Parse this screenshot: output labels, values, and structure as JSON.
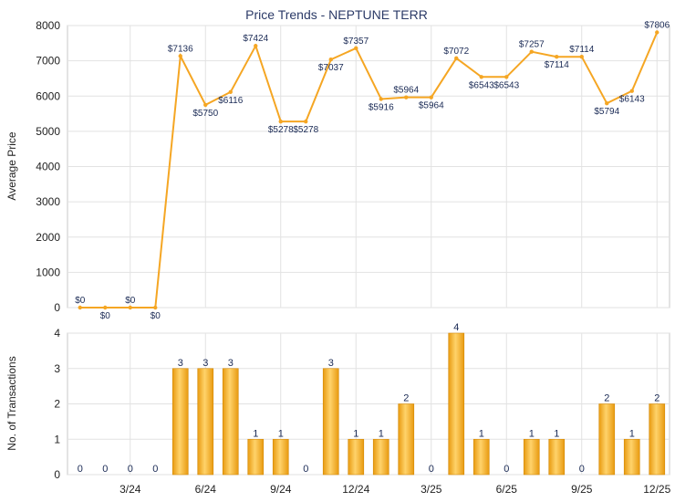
{
  "chart_data": [
    {
      "type": "line",
      "title": "Price Trends - NEPTUNE TERR",
      "ylabel": "Average Price",
      "xlabel": "",
      "ylim": [
        0,
        8000
      ],
      "yticks": [
        "0",
        "1000",
        "2000",
        "3000",
        "4000",
        "5000",
        "6000",
        "7000",
        "8000"
      ],
      "grid": true,
      "color": "#f5a623",
      "series": [
        {
          "values": [
            0,
            0,
            0,
            0,
            7136,
            5750,
            6116,
            7424,
            5278,
            5278,
            7037,
            7357,
            5916,
            5964,
            5964,
            7072,
            6543,
            6543,
            7257,
            7114,
            7114,
            5794,
            6143,
            7806
          ],
          "labels": [
            "$0",
            "$0",
            "$0",
            "$0",
            "$7136",
            "$5750",
            "$6116",
            "$7424",
            "$5278",
            "$5278",
            "$7037",
            "$7357",
            "$5916",
            "$5964",
            "$5964",
            "$7072",
            "$6543",
            "$6543",
            "$7257",
            "$7114",
            "$7114",
            "$5794",
            "$6143",
            "$7806"
          ]
        }
      ]
    },
    {
      "type": "bar",
      "ylabel": "No. of Transactions",
      "xlabel": "",
      "ylim": [
        0,
        4
      ],
      "yticks": [
        "0",
        "1",
        "2",
        "3",
        "4"
      ],
      "grid": true,
      "color": "#f5a623",
      "categories_ticks": [
        "3/24",
        "6/24",
        "9/24",
        "12/24",
        "3/25",
        "6/25",
        "9/25",
        "12/25"
      ],
      "values": [
        0,
        0,
        0,
        0,
        3,
        3,
        3,
        1,
        1,
        0,
        3,
        1,
        1,
        2,
        0,
        4,
        1,
        0,
        1,
        1,
        0,
        2,
        1,
        2
      ]
    }
  ]
}
